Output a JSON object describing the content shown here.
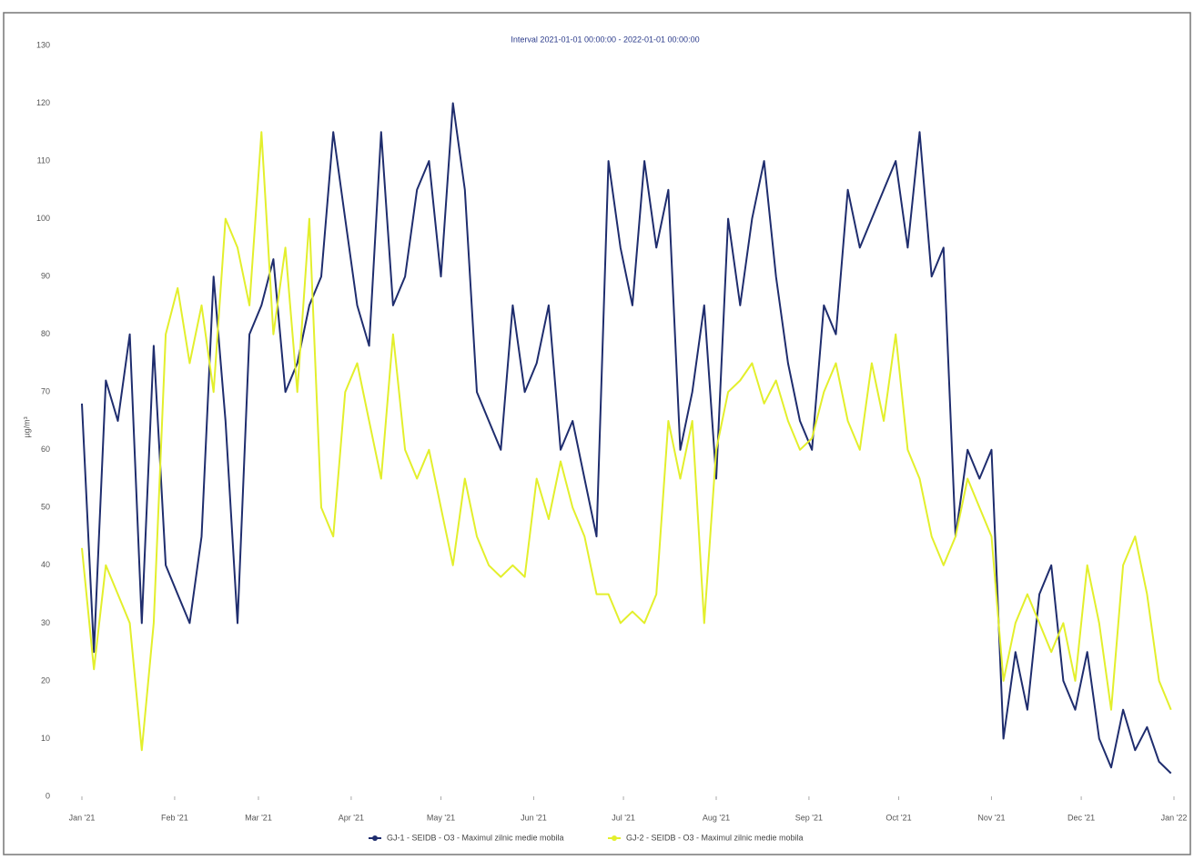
{
  "chart_data": {
    "type": "line",
    "title": "Interval 2021-01-01 00:00:00 - 2022-01-01 00:00:00",
    "y_label": "µg/m³",
    "x": [
      0,
      4,
      8,
      12,
      16,
      20,
      24,
      28,
      32,
      36,
      40,
      44,
      48,
      52,
      56,
      60,
      64,
      68,
      72,
      76,
      80,
      84,
      88,
      92,
      96,
      100,
      104,
      108,
      112,
      116,
      120,
      124,
      128,
      132,
      136,
      140,
      144,
      148,
      152,
      156,
      160,
      164,
      168,
      172,
      176,
      180,
      184,
      188,
      192,
      196,
      200,
      204,
      208,
      212,
      216,
      220,
      224,
      228,
      232,
      236,
      240,
      244,
      248,
      252,
      256,
      260,
      264,
      268,
      272,
      276,
      280,
      284,
      288,
      292,
      296,
      300,
      304,
      308,
      312,
      316,
      320,
      324,
      328,
      332,
      336,
      340,
      344,
      348,
      352,
      356,
      360,
      364
    ],
    "series": [
      {
        "name": "GJ-1 - SEIDB - O3 - Maximul zilnic medie mobila",
        "color": "#1f2d6e",
        "values": [
          68,
          25,
          72,
          65,
          80,
          30,
          78,
          40,
          35,
          30,
          45,
          90,
          65,
          30,
          80,
          85,
          93,
          70,
          75,
          85,
          90,
          115,
          100,
          85,
          78,
          115,
          85,
          90,
          105,
          110,
          90,
          120,
          105,
          70,
          65,
          60,
          85,
          70,
          75,
          85,
          60,
          65,
          55,
          45,
          110,
          95,
          85,
          110,
          95,
          105,
          60,
          70,
          85,
          55,
          100,
          85,
          100,
          110,
          90,
          75,
          65,
          60,
          85,
          80,
          105,
          95,
          100,
          105,
          110,
          95,
          115,
          90,
          95,
          45,
          60,
          55,
          60,
          10,
          25,
          15,
          35,
          40,
          20,
          15,
          25,
          10,
          5,
          15,
          8,
          12,
          6,
          4
        ]
      },
      {
        "name": "GJ-2 - SEIDB - O3 - Maximul zilnic medie mobila",
        "color": "#e3ef2c",
        "values": [
          43,
          22,
          40,
          35,
          30,
          8,
          30,
          80,
          88,
          75,
          85,
          70,
          100,
          95,
          85,
          115,
          80,
          95,
          70,
          100,
          50,
          45,
          70,
          75,
          65,
          55,
          80,
          60,
          55,
          60,
          50,
          40,
          55,
          45,
          40,
          38,
          40,
          38,
          55,
          48,
          58,
          50,
          45,
          35,
          35,
          30,
          32,
          30,
          35,
          65,
          55,
          65,
          30,
          60,
          70,
          72,
          75,
          68,
          72,
          65,
          60,
          62,
          70,
          75,
          65,
          60,
          75,
          65,
          80,
          60,
          55,
          45,
          40,
          45,
          55,
          50,
          45,
          20,
          30,
          35,
          30,
          25,
          30,
          20,
          40,
          30,
          15,
          40,
          45,
          35,
          20,
          15
        ]
      }
    ],
    "xlim": [
      0,
      365
    ],
    "xticks": [
      {
        "value": 0,
        "label": "Jan '21"
      },
      {
        "value": 31,
        "label": "Feb '21"
      },
      {
        "value": 59,
        "label": "Mar '21"
      },
      {
        "value": 90,
        "label": "Apr '21"
      },
      {
        "value": 120,
        "label": "May '21"
      },
      {
        "value": 151,
        "label": "Jun '21"
      },
      {
        "value": 181,
        "label": "Jul '21"
      },
      {
        "value": 212,
        "label": "Aug '21"
      },
      {
        "value": 243,
        "label": "Sep '21"
      },
      {
        "value": 273,
        "label": "Oct '21"
      },
      {
        "value": 304,
        "label": "Nov '21"
      },
      {
        "value": 334,
        "label": "Dec '21"
      },
      {
        "value": 365,
        "label": "Jan '22"
      }
    ],
    "ylim": [
      0,
      130
    ],
    "yticks": [
      0,
      10,
      20,
      30,
      40,
      50,
      60,
      70,
      80,
      90,
      100,
      110,
      120,
      130
    ],
    "grid": false
  }
}
